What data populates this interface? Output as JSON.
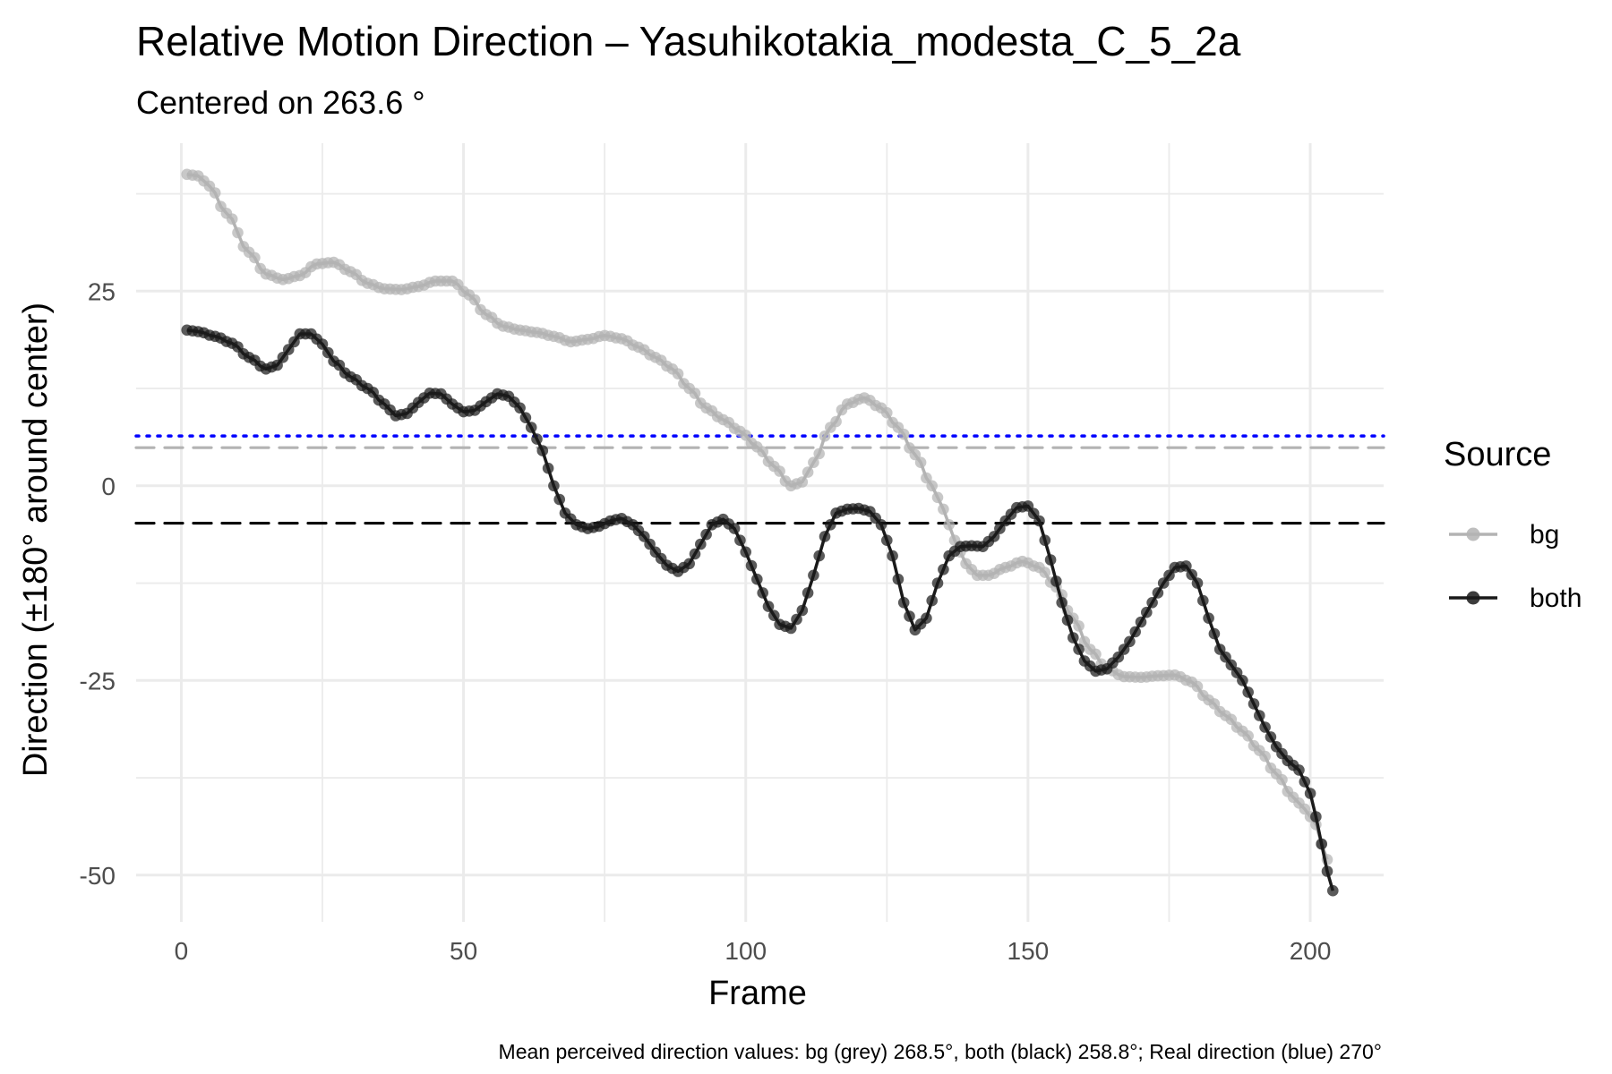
{
  "chart_data": {
    "type": "line",
    "title": "Relative Motion Direction – Yasuhikotakia_modesta_C_5_2a",
    "subtitle": "Centered on  263.6 °",
    "xlabel": "Frame",
    "ylabel": "Direction (±180° around center)",
    "caption": "Mean perceived direction values: bg (grey) 268.5°, both (black) 258.8°; Real direction (blue) 270°",
    "xlim": [
      -8,
      213
    ],
    "ylim": [
      -56,
      44
    ],
    "x_ticks": [
      0,
      50,
      100,
      150,
      200
    ],
    "x_tick_labels": [
      "0",
      "50",
      "100",
      "150",
      "200"
    ],
    "y_ticks": [
      25,
      0,
      -25,
      -50
    ],
    "y_tick_labels": [
      "25",
      "0",
      "-25",
      "-50"
    ],
    "grid": true,
    "legend": {
      "title": "Source",
      "position": "right",
      "entries": [
        {
          "label": "bg",
          "color": "#b3b3b3"
        },
        {
          "label": "both",
          "color": "#1a1a1a"
        }
      ]
    },
    "reference_lines": [
      {
        "name": "bg mean",
        "y": 4.9,
        "color": "#b3b3b3",
        "style": "dashed"
      },
      {
        "name": "both mean",
        "y": -4.8,
        "color": "#000000",
        "style": "dashed"
      },
      {
        "name": "real direction",
        "y": 6.4,
        "color": "#0000ff",
        "style": "dotted"
      }
    ],
    "series": [
      {
        "name": "bg",
        "color": "#b3b3b3",
        "keypoints": [
          [
            1,
            40
          ],
          [
            3,
            39.8
          ],
          [
            5,
            38.5
          ],
          [
            8,
            35
          ],
          [
            12,
            30
          ],
          [
            15,
            27.2
          ],
          [
            18,
            26.5
          ],
          [
            21,
            27
          ],
          [
            24,
            28.5
          ],
          [
            27,
            28.7
          ],
          [
            30,
            27.5
          ],
          [
            33,
            26
          ],
          [
            36,
            25.3
          ],
          [
            39,
            25.2
          ],
          [
            42,
            25.6
          ],
          [
            45,
            26.3
          ],
          [
            48,
            26.3
          ],
          [
            51,
            24.5
          ],
          [
            54,
            22
          ],
          [
            57,
            20.5
          ],
          [
            60,
            20
          ],
          [
            63,
            19.7
          ],
          [
            66,
            19.2
          ],
          [
            69,
            18.5
          ],
          [
            72,
            18.8
          ],
          [
            75,
            19.3
          ],
          [
            78,
            18.9
          ],
          [
            81,
            17.8
          ],
          [
            84,
            16.5
          ],
          [
            87,
            15
          ],
          [
            90,
            12.5
          ],
          [
            93,
            10
          ],
          [
            96,
            8.5
          ],
          [
            99,
            7
          ],
          [
            102,
            5
          ],
          [
            105,
            2.5
          ],
          [
            108,
            0
          ],
          [
            110,
            0.5
          ],
          [
            112,
            3
          ],
          [
            115,
            7.5
          ],
          [
            118,
            10.5
          ],
          [
            121,
            11.3
          ],
          [
            124,
            10
          ],
          [
            127,
            7.5
          ],
          [
            130,
            4
          ],
          [
            133,
            0
          ],
          [
            135,
            -3
          ],
          [
            137,
            -7
          ],
          [
            139,
            -10
          ],
          [
            141,
            -11.5
          ],
          [
            143,
            -11.5
          ],
          [
            146,
            -10.5
          ],
          [
            149,
            -9.7
          ],
          [
            152,
            -10.5
          ],
          [
            155,
            -13
          ],
          [
            158,
            -17
          ],
          [
            161,
            -21
          ],
          [
            164,
            -23.5
          ],
          [
            167,
            -24.5
          ],
          [
            170,
            -24.6
          ],
          [
            173,
            -24.4
          ],
          [
            176,
            -24.3
          ],
          [
            179,
            -25.2
          ],
          [
            182,
            -27.5
          ],
          [
            185,
            -29.5
          ],
          [
            188,
            -31.5
          ],
          [
            191,
            -34
          ],
          [
            194,
            -37
          ],
          [
            197,
            -40
          ],
          [
            199,
            -41.5
          ],
          [
            201,
            -43.5
          ],
          [
            202,
            -46
          ],
          [
            203,
            -48
          ]
        ]
      },
      {
        "name": "both",
        "color": "#1a1a1a",
        "keypoints": [
          [
            1,
            20
          ],
          [
            3,
            19.8
          ],
          [
            6,
            19.2
          ],
          [
            9,
            18.3
          ],
          [
            12,
            16.5
          ],
          [
            15,
            15
          ],
          [
            17,
            15.5
          ],
          [
            19,
            17.5
          ],
          [
            21,
            19.5
          ],
          [
            23,
            19.5
          ],
          [
            25,
            18.2
          ],
          [
            27,
            16
          ],
          [
            30,
            14
          ],
          [
            33,
            12.5
          ],
          [
            36,
            10.5
          ],
          [
            38,
            9
          ],
          [
            40,
            9.3
          ],
          [
            42,
            10.7
          ],
          [
            44,
            11.9
          ],
          [
            46,
            11.8
          ],
          [
            48,
            10.5
          ],
          [
            50,
            9.5
          ],
          [
            52,
            9.7
          ],
          [
            54,
            10.8
          ],
          [
            56,
            11.8
          ],
          [
            58,
            11.5
          ],
          [
            60,
            10
          ],
          [
            62,
            7.5
          ],
          [
            64,
            4.5
          ],
          [
            66,
            0
          ],
          [
            68,
            -3.5
          ],
          [
            70,
            -5
          ],
          [
            72,
            -5.5
          ],
          [
            74,
            -5.2
          ],
          [
            76,
            -4.5
          ],
          [
            78,
            -4.2
          ],
          [
            80,
            -5
          ],
          [
            82,
            -6.5
          ],
          [
            84,
            -8.5
          ],
          [
            86,
            -10.2
          ],
          [
            88,
            -11
          ],
          [
            90,
            -10
          ],
          [
            92,
            -7.5
          ],
          [
            94,
            -5
          ],
          [
            96,
            -4.3
          ],
          [
            98,
            -5.5
          ],
          [
            100,
            -8.5
          ],
          [
            102,
            -12
          ],
          [
            104,
            -15.5
          ],
          [
            106,
            -17.8
          ],
          [
            108,
            -18.3
          ],
          [
            110,
            -16
          ],
          [
            112,
            -11.5
          ],
          [
            114,
            -6.5
          ],
          [
            116,
            -3.5
          ],
          [
            118,
            -3
          ],
          [
            120,
            -2.9
          ],
          [
            122,
            -3.3
          ],
          [
            124,
            -5
          ],
          [
            126,
            -9
          ],
          [
            128,
            -15
          ],
          [
            130,
            -18.5
          ],
          [
            132,
            -17
          ],
          [
            134,
            -12.5
          ],
          [
            136,
            -9
          ],
          [
            138,
            -7.8
          ],
          [
            140,
            -7.7
          ],
          [
            142,
            -7.8
          ],
          [
            144,
            -6.5
          ],
          [
            146,
            -4.5
          ],
          [
            148,
            -2.8
          ],
          [
            150,
            -2.6
          ],
          [
            152,
            -4.5
          ],
          [
            154,
            -9.5
          ],
          [
            156,
            -15
          ],
          [
            158,
            -19.5
          ],
          [
            160,
            -22.5
          ],
          [
            162,
            -23.8
          ],
          [
            164,
            -23.5
          ],
          [
            166,
            -22
          ],
          [
            168,
            -20
          ],
          [
            170,
            -17.5
          ],
          [
            172,
            -15
          ],
          [
            174,
            -12.5
          ],
          [
            176,
            -10.5
          ],
          [
            178,
            -10.3
          ],
          [
            180,
            -12.5
          ],
          [
            182,
            -17
          ],
          [
            184,
            -21
          ],
          [
            186,
            -23
          ],
          [
            188,
            -25
          ],
          [
            190,
            -28
          ],
          [
            192,
            -31
          ],
          [
            194,
            -33.5
          ],
          [
            196,
            -35.3
          ],
          [
            198,
            -36.5
          ],
          [
            200,
            -39.5
          ],
          [
            201,
            -42.5
          ],
          [
            202,
            -46
          ],
          [
            203,
            -49.5
          ],
          [
            204,
            -52
          ]
        ]
      }
    ]
  }
}
